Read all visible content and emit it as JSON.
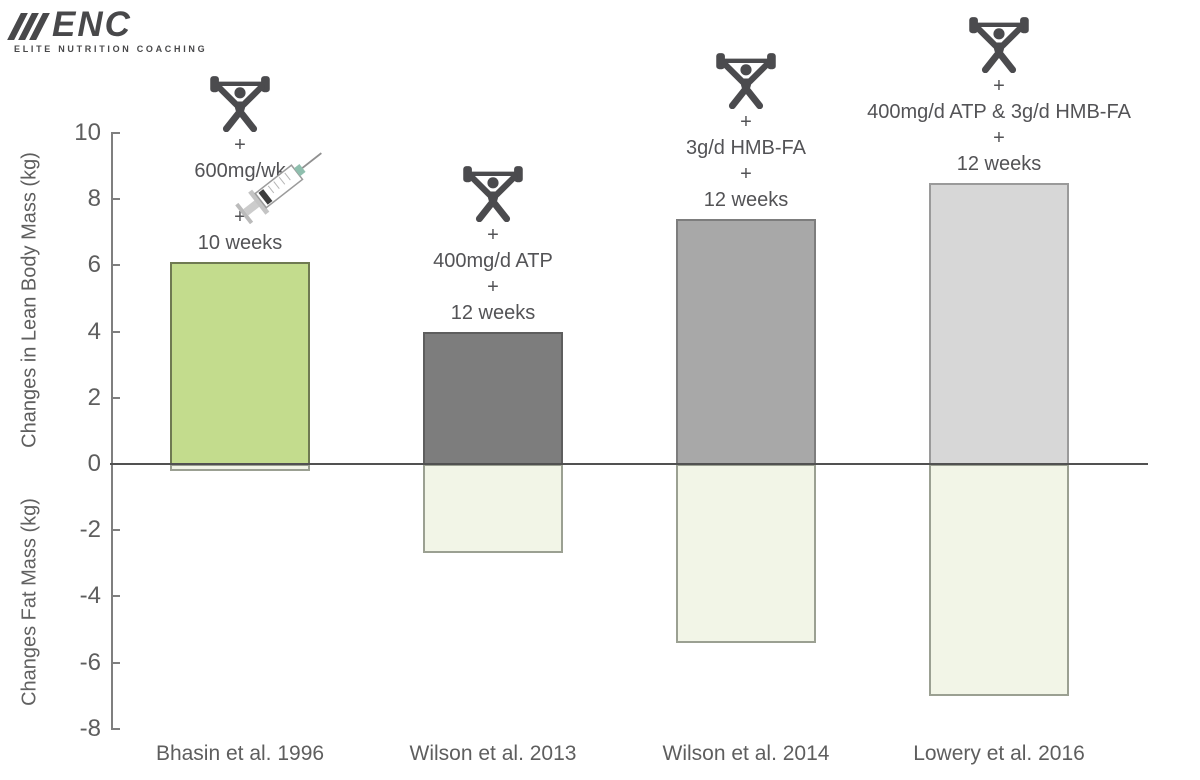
{
  "logo": {
    "brand": "ENC",
    "tagline": "ELITE NUTRITION COACHING"
  },
  "chart_data": {
    "type": "bar",
    "title": "",
    "categories": [
      "Bhasin et al. 1996",
      "Wilson et al. 2013",
      "Wilson et al. 2014",
      "Lowery et al. 2016"
    ],
    "series": [
      {
        "name": "Changes in Lean Body Mass (kg)",
        "values": [
          6.1,
          4.0,
          7.4,
          8.5
        ]
      },
      {
        "name": "Changes Fat Mass (kg)",
        "values": [
          -0.2,
          -2.7,
          -5.4,
          -7.0
        ]
      }
    ],
    "ylabel_top": "Changes in Lean Body Mass (kg)",
    "ylabel_bottom": "Changes Fat Mass (kg)",
    "ylim": [
      -8,
      10
    ],
    "yticks": [
      10,
      8,
      6,
      4,
      2,
      0,
      -2,
      -4,
      -6,
      -8
    ],
    "grid": false,
    "legend_position": "none",
    "bar_colors": [
      "#c3dc8d",
      "#7d7d7d",
      "#a8a8a8",
      "#d7d7d7"
    ],
    "bar_border_colors": [
      "#6f7a52",
      "#5e5e5e",
      "#7d7d7d",
      "#9a9a9a"
    ],
    "negative_fill": "#f2f5e7",
    "negative_border": "#9ba092",
    "annotations": [
      {
        "icon": "weightlifter-icon",
        "extra_icon": "syringe-icon",
        "lines": [
          "+",
          "600mg/wk",
          "+",
          "10 weeks"
        ]
      },
      {
        "icon": "weightlifter-icon",
        "lines": [
          "+",
          "400mg/d ATP",
          "+",
          "12 weeks"
        ]
      },
      {
        "icon": "weightlifter-icon",
        "lines": [
          "+",
          "3g/d HMB-FA",
          "+",
          "12 weeks"
        ]
      },
      {
        "icon": "weightlifter-icon",
        "lines": [
          "+",
          "400mg/d ATP & 3g/d HMB-FA",
          "+",
          "12 weeks"
        ]
      }
    ]
  },
  "colors": {
    "logo": "#48484a",
    "icon": "#4b4b4e",
    "axis": "#7f7f7f",
    "zero_line": "#515151",
    "tick_text": "#5e5e5e",
    "annotation_text": "#535356"
  }
}
